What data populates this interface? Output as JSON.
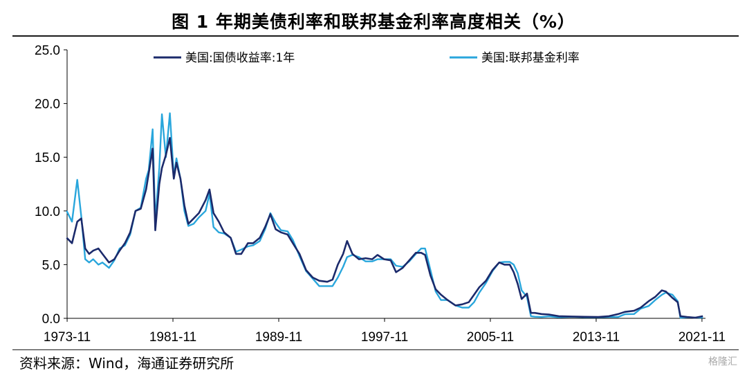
{
  "title": "图  1 年期美债利率和联邦基金利率高度相关（%）",
  "source": "资料来源：Wind，海通证券研究所",
  "watermark": "格隆汇",
  "chart_data": {
    "type": "line",
    "title": "图  1 年期美债利率和联邦基金利率高度相关（%）",
    "xlabel": "",
    "ylabel": "",
    "x_ticks": [
      "1973-11",
      "1981-11",
      "1989-11",
      "1997-11",
      "2005-11",
      "2013-11",
      "2021-11"
    ],
    "y_ticks": [
      "0.0",
      "5.0",
      "10.0",
      "15.0",
      "20.0",
      "25.0"
    ],
    "xlim": [
      1973.83,
      2022.1
    ],
    "ylim": [
      0,
      25
    ],
    "legend_position": "top",
    "series": [
      {
        "name": "美国:国债收益率:1年",
        "color": "#1b2a6b",
        "points": [
          [
            1973.8,
            7.5
          ],
          [
            1974.2,
            7.0
          ],
          [
            1974.6,
            9.0
          ],
          [
            1974.9,
            9.3
          ],
          [
            1975.2,
            6.5
          ],
          [
            1975.5,
            6.0
          ],
          [
            1975.8,
            6.3
          ],
          [
            1976.2,
            6.5
          ],
          [
            1976.5,
            6.0
          ],
          [
            1977.0,
            5.2
          ],
          [
            1977.4,
            5.5
          ],
          [
            1977.8,
            6.3
          ],
          [
            1978.2,
            7.0
          ],
          [
            1978.6,
            8.0
          ],
          [
            1979.0,
            10.0
          ],
          [
            1979.4,
            10.2
          ],
          [
            1979.8,
            12.0
          ],
          [
            1980.0,
            13.5
          ],
          [
            1980.3,
            15.8
          ],
          [
            1980.5,
            8.2
          ],
          [
            1980.8,
            12.5
          ],
          [
            1981.0,
            14.0
          ],
          [
            1981.3,
            15.2
          ],
          [
            1981.6,
            16.8
          ],
          [
            1981.9,
            13.0
          ],
          [
            1982.1,
            14.5
          ],
          [
            1982.4,
            13.0
          ],
          [
            1982.7,
            10.5
          ],
          [
            1983.0,
            8.8
          ],
          [
            1983.4,
            9.3
          ],
          [
            1983.8,
            9.8
          ],
          [
            1984.3,
            11.0
          ],
          [
            1984.6,
            12.0
          ],
          [
            1984.9,
            9.8
          ],
          [
            1985.3,
            9.0
          ],
          [
            1985.7,
            8.0
          ],
          [
            1986.2,
            7.5
          ],
          [
            1986.6,
            6.0
          ],
          [
            1987.0,
            6.0
          ],
          [
            1987.5,
            7.0
          ],
          [
            1987.9,
            7.0
          ],
          [
            1988.4,
            7.5
          ],
          [
            1988.8,
            8.5
          ],
          [
            1989.2,
            9.7
          ],
          [
            1989.6,
            8.3
          ],
          [
            1990.0,
            8.0
          ],
          [
            1990.5,
            7.8
          ],
          [
            1990.9,
            7.0
          ],
          [
            1991.4,
            6.0
          ],
          [
            1991.9,
            4.5
          ],
          [
            1992.4,
            3.8
          ],
          [
            1992.9,
            3.5
          ],
          [
            1993.5,
            3.4
          ],
          [
            1993.9,
            3.6
          ],
          [
            1994.3,
            5.0
          ],
          [
            1994.7,
            6.0
          ],
          [
            1995.0,
            7.2
          ],
          [
            1995.4,
            6.0
          ],
          [
            1995.9,
            5.5
          ],
          [
            1996.4,
            5.6
          ],
          [
            1996.9,
            5.5
          ],
          [
            1997.3,
            5.9
          ],
          [
            1997.8,
            5.5
          ],
          [
            1998.3,
            5.4
          ],
          [
            1998.7,
            4.3
          ],
          [
            1999.2,
            4.7
          ],
          [
            1999.7,
            5.4
          ],
          [
            2000.2,
            6.1
          ],
          [
            2000.6,
            6.1
          ],
          [
            2000.9,
            5.9
          ],
          [
            2001.3,
            4.0
          ],
          [
            2001.7,
            2.7
          ],
          [
            2002.1,
            2.2
          ],
          [
            2002.6,
            1.7
          ],
          [
            2003.2,
            1.2
          ],
          [
            2003.7,
            1.3
          ],
          [
            2004.2,
            1.5
          ],
          [
            2004.6,
            2.2
          ],
          [
            2005.0,
            2.9
          ],
          [
            2005.5,
            3.5
          ],
          [
            2006.0,
            4.5
          ],
          [
            2006.5,
            5.2
          ],
          [
            2006.9,
            5.0
          ],
          [
            2007.3,
            5.0
          ],
          [
            2007.6,
            4.3
          ],
          [
            2007.9,
            3.2
          ],
          [
            2008.2,
            1.8
          ],
          [
            2008.6,
            2.3
          ],
          [
            2008.9,
            0.5
          ],
          [
            2009.2,
            0.5
          ],
          [
            2009.7,
            0.4
          ],
          [
            2010.3,
            0.35
          ],
          [
            2011.0,
            0.2
          ],
          [
            2012.0,
            0.17
          ],
          [
            2013.0,
            0.14
          ],
          [
            2014.0,
            0.12
          ],
          [
            2014.8,
            0.2
          ],
          [
            2015.5,
            0.4
          ],
          [
            2016.0,
            0.6
          ],
          [
            2016.7,
            0.7
          ],
          [
            2017.2,
            1.0
          ],
          [
            2017.8,
            1.6
          ],
          [
            2018.3,
            2.0
          ],
          [
            2018.8,
            2.6
          ],
          [
            2019.1,
            2.5
          ],
          [
            2019.6,
            1.9
          ],
          [
            2020.0,
            1.5
          ],
          [
            2020.2,
            0.2
          ],
          [
            2020.7,
            0.12
          ],
          [
            2021.3,
            0.06
          ],
          [
            2021.9,
            0.2
          ]
        ]
      },
      {
        "name": "美国:联邦基金利率",
        "color": "#29a6dc",
        "points": [
          [
            1973.8,
            10.0
          ],
          [
            1974.2,
            9.0
          ],
          [
            1974.6,
            12.9
          ],
          [
            1974.9,
            9.5
          ],
          [
            1975.2,
            5.5
          ],
          [
            1975.5,
            5.2
          ],
          [
            1975.8,
            5.5
          ],
          [
            1976.2,
            5.0
          ],
          [
            1976.5,
            5.2
          ],
          [
            1977.0,
            4.7
          ],
          [
            1977.4,
            5.4
          ],
          [
            1977.8,
            6.5
          ],
          [
            1978.2,
            6.8
          ],
          [
            1978.6,
            7.8
          ],
          [
            1979.0,
            10.0
          ],
          [
            1979.4,
            10.3
          ],
          [
            1979.8,
            13.0
          ],
          [
            1980.0,
            13.8
          ],
          [
            1980.3,
            17.6
          ],
          [
            1980.5,
            9.0
          ],
          [
            1980.8,
            14.0
          ],
          [
            1981.0,
            19.0
          ],
          [
            1981.3,
            15.0
          ],
          [
            1981.6,
            19.1
          ],
          [
            1981.9,
            13.2
          ],
          [
            1982.1,
            14.9
          ],
          [
            1982.4,
            13.0
          ],
          [
            1982.7,
            10.0
          ],
          [
            1983.0,
            8.6
          ],
          [
            1983.4,
            8.8
          ],
          [
            1983.8,
            9.4
          ],
          [
            1984.3,
            10.0
          ],
          [
            1984.6,
            11.6
          ],
          [
            1984.9,
            8.5
          ],
          [
            1985.3,
            8.0
          ],
          [
            1985.7,
            7.9
          ],
          [
            1986.2,
            7.5
          ],
          [
            1986.6,
            6.2
          ],
          [
            1987.0,
            6.4
          ],
          [
            1987.5,
            6.7
          ],
          [
            1987.9,
            6.8
          ],
          [
            1988.4,
            7.2
          ],
          [
            1988.8,
            8.3
          ],
          [
            1989.2,
            9.8
          ],
          [
            1989.6,
            8.9
          ],
          [
            1990.0,
            8.2
          ],
          [
            1990.5,
            8.1
          ],
          [
            1990.9,
            7.3
          ],
          [
            1991.4,
            5.8
          ],
          [
            1991.9,
            4.4
          ],
          [
            1992.4,
            3.7
          ],
          [
            1992.9,
            3.0
          ],
          [
            1993.5,
            3.0
          ],
          [
            1993.9,
            3.0
          ],
          [
            1994.3,
            3.8
          ],
          [
            1994.7,
            4.8
          ],
          [
            1995.0,
            5.7
          ],
          [
            1995.4,
            5.9
          ],
          [
            1995.9,
            5.7
          ],
          [
            1996.4,
            5.3
          ],
          [
            1996.9,
            5.3
          ],
          [
            1997.3,
            5.5
          ],
          [
            1997.8,
            5.5
          ],
          [
            1998.3,
            5.5
          ],
          [
            1998.7,
            4.9
          ],
          [
            1999.2,
            4.8
          ],
          [
            1999.7,
            5.3
          ],
          [
            2000.2,
            6.0
          ],
          [
            2000.6,
            6.5
          ],
          [
            2000.9,
            6.5
          ],
          [
            2001.3,
            4.5
          ],
          [
            2001.7,
            2.5
          ],
          [
            2002.1,
            1.7
          ],
          [
            2002.6,
            1.7
          ],
          [
            2003.2,
            1.2
          ],
          [
            2003.7,
            1.0
          ],
          [
            2004.2,
            1.0
          ],
          [
            2004.6,
            1.5
          ],
          [
            2005.0,
            2.4
          ],
          [
            2005.5,
            3.3
          ],
          [
            2006.0,
            4.4
          ],
          [
            2006.5,
            5.2
          ],
          [
            2006.9,
            5.25
          ],
          [
            2007.3,
            5.25
          ],
          [
            2007.6,
            5.0
          ],
          [
            2007.9,
            4.2
          ],
          [
            2008.2,
            2.6
          ],
          [
            2008.6,
            2.0
          ],
          [
            2008.9,
            0.2
          ],
          [
            2009.2,
            0.15
          ],
          [
            2009.7,
            0.12
          ],
          [
            2010.3,
            0.18
          ],
          [
            2011.0,
            0.1
          ],
          [
            2012.0,
            0.14
          ],
          [
            2013.0,
            0.1
          ],
          [
            2014.0,
            0.09
          ],
          [
            2014.8,
            0.12
          ],
          [
            2015.5,
            0.13
          ],
          [
            2016.0,
            0.38
          ],
          [
            2016.7,
            0.4
          ],
          [
            2017.2,
            0.9
          ],
          [
            2017.8,
            1.15
          ],
          [
            2018.3,
            1.7
          ],
          [
            2018.8,
            2.2
          ],
          [
            2019.1,
            2.4
          ],
          [
            2019.6,
            2.2
          ],
          [
            2020.0,
            1.6
          ],
          [
            2020.2,
            0.05
          ],
          [
            2020.7,
            0.09
          ],
          [
            2021.3,
            0.07
          ],
          [
            2021.9,
            0.08
          ]
        ]
      }
    ]
  }
}
